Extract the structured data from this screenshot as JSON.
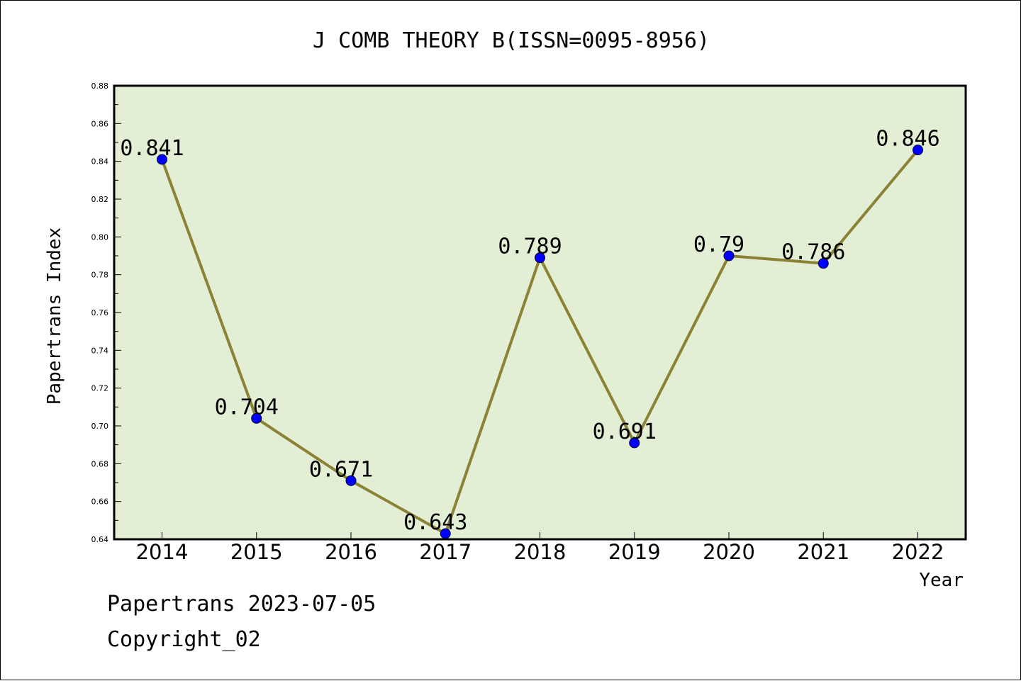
{
  "chart_data": {
    "type": "line",
    "title": "J COMB THEORY B(ISSN=0095-8956)",
    "xlabel": "Year",
    "ylabel": "Papertrans Index",
    "categories": [
      "2014",
      "2015",
      "2016",
      "2017",
      "2018",
      "2019",
      "2020",
      "2021",
      "2022"
    ],
    "series": [
      {
        "values": [
          0.841,
          0.704,
          0.671,
          0.643,
          0.789,
          0.691,
          0.79,
          0.786,
          0.846
        ],
        "data_labels": [
          "0.841",
          "0.704",
          "0.671",
          "0.643",
          "0.789",
          "0.691",
          "0.79",
          "0.786",
          "0.846"
        ]
      }
    ],
    "ylim": [
      0.64,
      0.88
    ],
    "yticks": [
      "0.64",
      "0.66",
      "0.68",
      "0.70",
      "0.72",
      "0.74",
      "0.76",
      "0.78",
      "0.80",
      "0.82",
      "0.84",
      "0.86",
      "0.88"
    ],
    "grid": false,
    "legend": "none",
    "colors": {
      "plot_background": "#e2efd4",
      "line": "#8c8236",
      "marker": "#0000ff"
    }
  },
  "footer": {
    "line1": "Papertrans 2023-07-05",
    "line2": "Copyright_02"
  }
}
